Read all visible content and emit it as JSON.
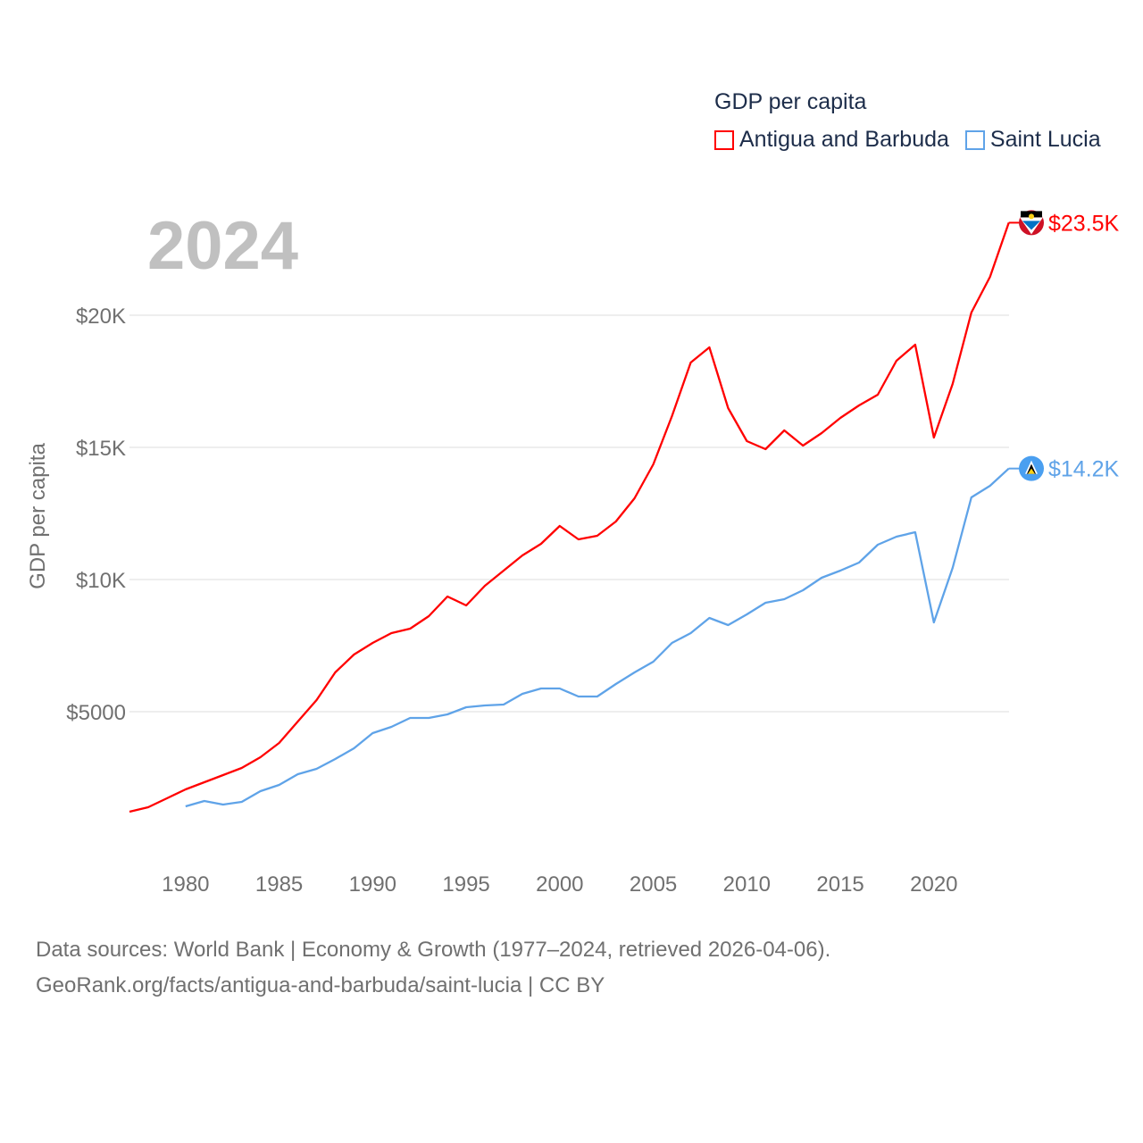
{
  "chart_data": {
    "type": "line",
    "title": "GDP per capita",
    "ylabel": "GDP per capita",
    "xlabel": "",
    "year_label": "2024",
    "xlim": [
      1977,
      2024
    ],
    "ylim": [
      0,
      25000
    ],
    "x_ticks": [
      1980,
      1985,
      1990,
      1995,
      2000,
      2005,
      2010,
      2015,
      2020
    ],
    "y_ticks": [
      {
        "value": 5000,
        "label": "$5000"
      },
      {
        "value": 10000,
        "label": "$10K"
      },
      {
        "value": 15000,
        "label": "$15K"
      },
      {
        "value": 20000,
        "label": "$20K"
      }
    ],
    "grid": true,
    "legend_position": "top-right",
    "series": [
      {
        "name": "Antigua and Barbuda",
        "color": "#ff0000",
        "end_label": "$23.5K",
        "start_year": 1977,
        "values": [
          1216,
          1385,
          1723,
          2061,
          2331,
          2601,
          2872,
          3277,
          3818,
          4628,
          5439,
          6486,
          7162,
          7601,
          7973,
          8142,
          8615,
          9358,
          9020,
          9764,
          10338,
          10912,
          11351,
          12027,
          11520,
          11655,
          12196,
          13074,
          14358,
          16182,
          18209,
          18784,
          16486,
          15236,
          14932,
          15642,
          15068,
          15541,
          16115,
          16588,
          16993,
          18277,
          18885,
          15372,
          17399,
          20101,
          21453,
          23500
        ]
      },
      {
        "name": "Saint Lucia",
        "color": "#5fa3e8",
        "end_label": "$14.2K",
        "start_year": 1980,
        "values": [
          1419,
          1622,
          1486,
          1588,
          1993,
          2230,
          2635,
          2838,
          3209,
          3615,
          4189,
          4426,
          4764,
          4764,
          4899,
          5169,
          5236,
          5270,
          5676,
          5878,
          5878,
          5574,
          5574,
          6047,
          6486,
          6892,
          7601,
          7973,
          8547,
          8277,
          8682,
          9122,
          9257,
          9595,
          10068,
          10338,
          10642,
          11318,
          11622,
          11791,
          8378,
          10439,
          13108,
          13547,
          14200
        ]
      }
    ]
  },
  "footer": {
    "line1": "Data sources: World Bank | Economy & Growth (1977–2024, retrieved 2026-04-06).",
    "line2": "GeoRank.org/facts/antigua-and-barbuda/saint-lucia | CC BY"
  }
}
